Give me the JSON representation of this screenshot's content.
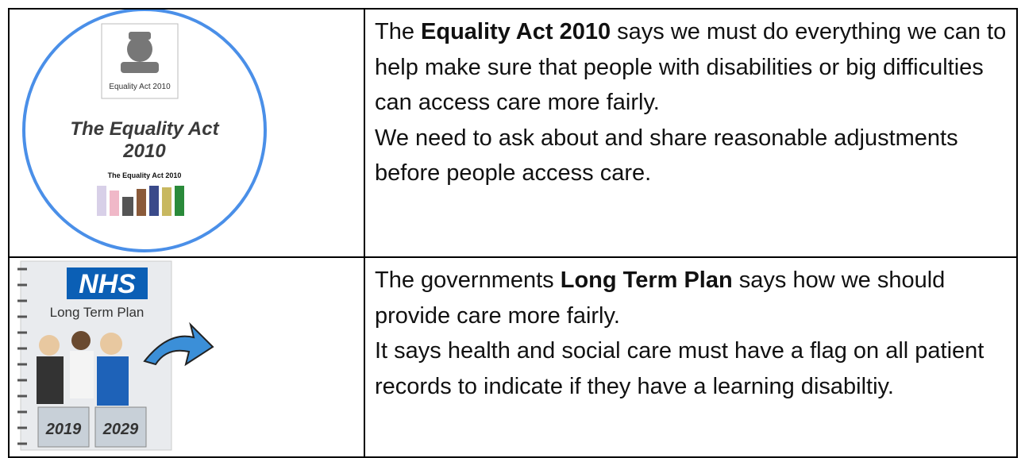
{
  "rows": [
    {
      "image": {
        "crest_caption": "Equality Act 2010",
        "title_line1": "The Equality Act",
        "title_line2": "2010",
        "subcaption": "The Equality Act 2010"
      },
      "paragraphs": [
        [
          {
            "text": "The "
          },
          {
            "text": "Equality Act 2010",
            "bold": true
          },
          {
            "text": " says we must do everything we can to help make sure that people with disabilities or big difficulties can access care more fairly."
          }
        ],
        [
          {
            "text": "We need to ask about and share reasonable adjustments before people access care."
          }
        ]
      ]
    },
    {
      "image": {
        "logo": "NHS",
        "title": "Long Term Plan",
        "year_start": "2019",
        "year_end": "2029"
      },
      "paragraphs": [
        [
          {
            "text": "The governments "
          },
          {
            "text": "Long Term Plan",
            "bold": true
          },
          {
            "text": " says how we should provide care more fairly."
          }
        ],
        [
          {
            "text": "It says health and social care must have a flag on all patient records to indicate if they have a learning disabiltiy."
          }
        ]
      ]
    }
  ]
}
